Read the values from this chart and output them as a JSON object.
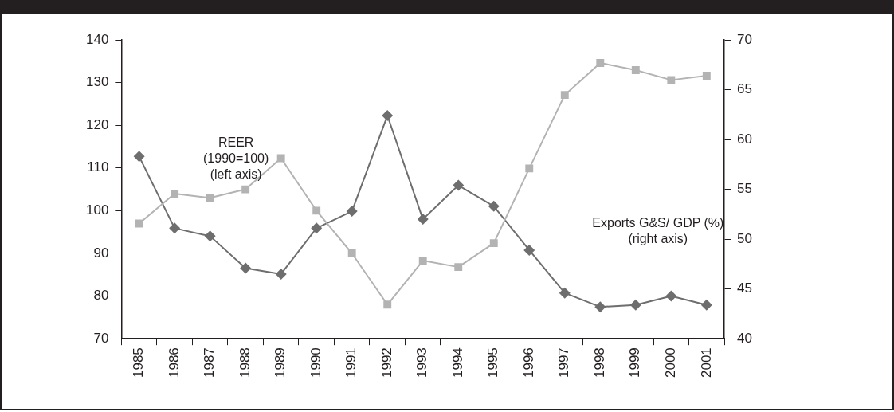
{
  "chart_data": {
    "type": "line",
    "categories": [
      "1985",
      "1986",
      "1987",
      "1988",
      "1989",
      "1990",
      "1991",
      "1992",
      "1993",
      "1994",
      "1995",
      "1996",
      "1997",
      "1998",
      "1999",
      "2000",
      "2001"
    ],
    "series": [
      {
        "color": "#b3b3b3",
        "marker": "square",
        "values": [
          97,
          104,
          103,
          105,
          112.3,
          100,
          90,
          78,
          88.3,
          86.8,
          92.4,
          109.9,
          127.1,
          134.6,
          132.9,
          130.6,
          131.6
        ]
      },
      {
        "color": "#6e6e6e",
        "marker": "diamond",
        "axis": "y2",
        "values": [
          58.3,
          51.1,
          50.3,
          47.1,
          46.5,
          51.1,
          52.8,
          62.4,
          52.0,
          55.4,
          53.3,
          48.9,
          44.6,
          43.2,
          43.4,
          44.3,
          43.4
        ]
      }
    ],
    "ylim": [
      70,
      140
    ],
    "yticks": [
      70,
      80,
      90,
      100,
      110,
      120,
      130,
      140
    ],
    "y2lim": [
      40,
      70
    ],
    "y2ticks": [
      40,
      45,
      50,
      55,
      60,
      65,
      70
    ],
    "grid": false,
    "legend": false,
    "line_style": "solid",
    "annotations": [
      "REER\n(1990=100)\n(left axis)",
      "Exports G&S/ GDP (%)\n(right axis)"
    ]
  }
}
